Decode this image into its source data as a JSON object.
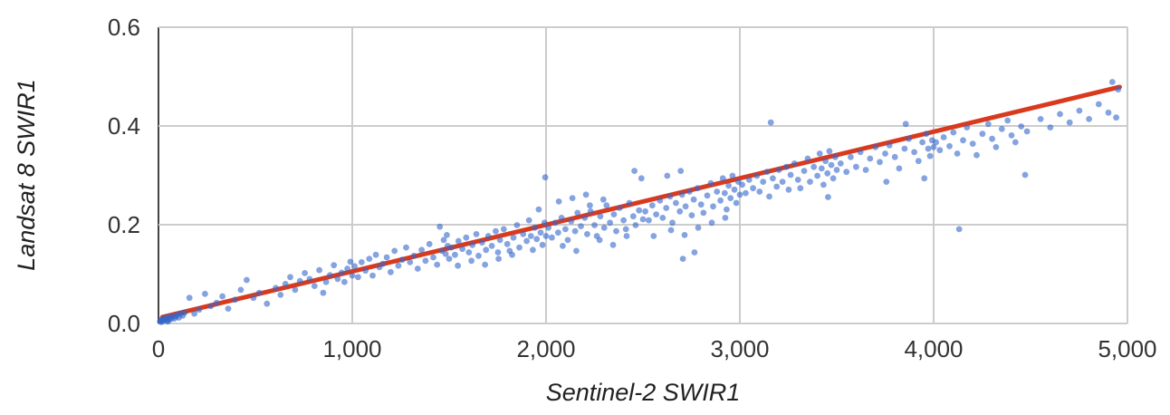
{
  "chart": {
    "x_axis_title": "Sentinel-2 SWIR1",
    "y_axis_title": "Landsat 8 SWIR1"
  },
  "chart_data": {
    "type": "scatter",
    "title": "",
    "xlabel": "Sentinel-2 SWIR1",
    "ylabel": "Landsat 8 SWIR1",
    "xlim": [
      0,
      5000
    ],
    "ylim": [
      0,
      0.6
    ],
    "grid": true,
    "legend": "none",
    "point_color": "#3366cc",
    "point_opacity": 0.6,
    "gridline_color": "#cccccc",
    "axis_line_color": "#444444",
    "tick_label_color": "#333333",
    "x_ticks": [
      {
        "value": 0,
        "label": "0"
      },
      {
        "value": 1000,
        "label": "1,000"
      },
      {
        "value": 2000,
        "label": "2,000"
      },
      {
        "value": 3000,
        "label": "3,000"
      },
      {
        "value": 4000,
        "label": "4,000"
      },
      {
        "value": 5000,
        "label": "5,000"
      }
    ],
    "y_ticks": [
      {
        "value": 0,
        "label": "0.0"
      },
      {
        "value": 0.2,
        "label": "0.2"
      },
      {
        "value": 0.4,
        "label": "0.4"
      },
      {
        "value": 0.6,
        "label": "0.6"
      }
    ],
    "trendline": {
      "x1": 20,
      "y1": 0.013,
      "x2": 4960,
      "y2": 0.479,
      "color": "#d93a1e",
      "width": 5
    },
    "points": [
      [
        8,
        0.004
      ],
      [
        12,
        0.006
      ],
      [
        15,
        0.003
      ],
      [
        18,
        0.008
      ],
      [
        22,
        0.005
      ],
      [
        28,
        0.01
      ],
      [
        33,
        0.007
      ],
      [
        38,
        0.012
      ],
      [
        44,
        0.006
      ],
      [
        48,
        0.004
      ],
      [
        50,
        0.009
      ],
      [
        55,
        0.013
      ],
      [
        60,
        0.008
      ],
      [
        68,
        0.011
      ],
      [
        75,
        0.015
      ],
      [
        82,
        0.01
      ],
      [
        90,
        0.014
      ],
      [
        98,
        0.018
      ],
      [
        105,
        0.012
      ],
      [
        115,
        0.02
      ],
      [
        125,
        0.016
      ],
      [
        135,
        0.022
      ],
      [
        160,
        0.052
      ],
      [
        185,
        0.02
      ],
      [
        210,
        0.028
      ],
      [
        240,
        0.06
      ],
      [
        270,
        0.035
      ],
      [
        300,
        0.042
      ],
      [
        330,
        0.055
      ],
      [
        360,
        0.03
      ],
      [
        395,
        0.048
      ],
      [
        425,
        0.068
      ],
      [
        455,
        0.088
      ],
      [
        490,
        0.052
      ],
      [
        520,
        0.062
      ],
      [
        560,
        0.04
      ],
      [
        605,
        0.072
      ],
      [
        630,
        0.058
      ],
      [
        655,
        0.08
      ],
      [
        680,
        0.094
      ],
      [
        705,
        0.068
      ],
      [
        730,
        0.086
      ],
      [
        755,
        0.102
      ],
      [
        780,
        0.09
      ],
      [
        805,
        0.076
      ],
      [
        830,
        0.108
      ],
      [
        850,
        0.062
      ],
      [
        865,
        0.084
      ],
      [
        885,
        0.098
      ],
      [
        905,
        0.118
      ],
      [
        925,
        0.09
      ],
      [
        945,
        0.103
      ],
      [
        960,
        0.084
      ],
      [
        975,
        0.111
      ],
      [
        990,
        0.125
      ],
      [
        1000,
        0.097
      ],
      [
        1012,
        0.116
      ],
      [
        1030,
        0.094
      ],
      [
        1048,
        0.124
      ],
      [
        1068,
        0.107
      ],
      [
        1088,
        0.131
      ],
      [
        1105,
        0.097
      ],
      [
        1122,
        0.139
      ],
      [
        1140,
        0.114
      ],
      [
        1158,
        0.121
      ],
      [
        1178,
        0.134
      ],
      [
        1198,
        0.104
      ],
      [
        1218,
        0.147
      ],
      [
        1238,
        0.117
      ],
      [
        1258,
        0.129
      ],
      [
        1278,
        0.154
      ],
      [
        1298,
        0.124
      ],
      [
        1318,
        0.137
      ],
      [
        1338,
        0.111
      ],
      [
        1358,
        0.149
      ],
      [
        1378,
        0.127
      ],
      [
        1398,
        0.161
      ],
      [
        1418,
        0.134
      ],
      [
        1438,
        0.119
      ],
      [
        1452,
        0.196
      ],
      [
        1462,
        0.147
      ],
      [
        1472,
        0.169
      ],
      [
        1482,
        0.141
      ],
      [
        1488,
        0.179
      ],
      [
        1492,
        0.157
      ],
      [
        1500,
        0.131
      ],
      [
        1512,
        0.154
      ],
      [
        1530,
        0.139
      ],
      [
        1545,
        0.117
      ],
      [
        1548,
        0.167
      ],
      [
        1568,
        0.151
      ],
      [
        1588,
        0.174
      ],
      [
        1602,
        0.144
      ],
      [
        1615,
        0.127
      ],
      [
        1620,
        0.159
      ],
      [
        1640,
        0.181
      ],
      [
        1652,
        0.137
      ],
      [
        1670,
        0.164
      ],
      [
        1685,
        0.119
      ],
      [
        1690,
        0.149
      ],
      [
        1702,
        0.177
      ],
      [
        1720,
        0.157
      ],
      [
        1740,
        0.187
      ],
      [
        1752,
        0.144
      ],
      [
        1755,
        0.131
      ],
      [
        1762,
        0.169
      ],
      [
        1782,
        0.191
      ],
      [
        1800,
        0.161
      ],
      [
        1812,
        0.147
      ],
      [
        1825,
        0.139
      ],
      [
        1832,
        0.174
      ],
      [
        1850,
        0.199
      ],
      [
        1862,
        0.154
      ],
      [
        1882,
        0.181
      ],
      [
        1900,
        0.167
      ],
      [
        1912,
        0.209
      ],
      [
        1922,
        0.177
      ],
      [
        1932,
        0.149
      ],
      [
        1942,
        0.194
      ],
      [
        1952,
        0.171
      ],
      [
        1962,
        0.231
      ],
      [
        1972,
        0.184
      ],
      [
        1982,
        0.159
      ],
      [
        1992,
        0.204
      ],
      [
        1996,
        0.296
      ],
      [
        2000,
        0.177
      ],
      [
        2012,
        0.194
      ],
      [
        2030,
        0.174
      ],
      [
        2048,
        0.204
      ],
      [
        2062,
        0.184
      ],
      [
        2066,
        0.247
      ],
      [
        2080,
        0.214
      ],
      [
        2086,
        0.157
      ],
      [
        2100,
        0.191
      ],
      [
        2112,
        0.169
      ],
      [
        2130,
        0.207
      ],
      [
        2136,
        0.254
      ],
      [
        2150,
        0.187
      ],
      [
        2156,
        0.147
      ],
      [
        2162,
        0.224
      ],
      [
        2180,
        0.197
      ],
      [
        2200,
        0.214
      ],
      [
        2206,
        0.261
      ],
      [
        2212,
        0.181
      ],
      [
        2226,
        0.239
      ],
      [
        2230,
        0.227
      ],
      [
        2250,
        0.199
      ],
      [
        2262,
        0.177
      ],
      [
        2276,
        0.169
      ],
      [
        2280,
        0.217
      ],
      [
        2296,
        0.251
      ],
      [
        2300,
        0.194
      ],
      [
        2312,
        0.239
      ],
      [
        2330,
        0.204
      ],
      [
        2346,
        0.159
      ],
      [
        2350,
        0.221
      ],
      [
        2362,
        0.187
      ],
      [
        2380,
        0.234
      ],
      [
        2400,
        0.209
      ],
      [
        2412,
        0.191
      ],
      [
        2416,
        0.177
      ],
      [
        2430,
        0.244
      ],
      [
        2450,
        0.217
      ],
      [
        2456,
        0.309
      ],
      [
        2462,
        0.199
      ],
      [
        2480,
        0.229
      ],
      [
        2492,
        0.294
      ],
      [
        2500,
        0.211
      ],
      [
        2512,
        0.227
      ],
      [
        2530,
        0.209
      ],
      [
        2548,
        0.239
      ],
      [
        2555,
        0.177
      ],
      [
        2568,
        0.221
      ],
      [
        2588,
        0.249
      ],
      [
        2602,
        0.214
      ],
      [
        2620,
        0.234
      ],
      [
        2625,
        0.299
      ],
      [
        2640,
        0.257
      ],
      [
        2645,
        0.189
      ],
      [
        2652,
        0.204
      ],
      [
        2670,
        0.244
      ],
      [
        2690,
        0.227
      ],
      [
        2695,
        0.309
      ],
      [
        2702,
        0.261
      ],
      [
        2706,
        0.131
      ],
      [
        2715,
        0.179
      ],
      [
        2720,
        0.237
      ],
      [
        2740,
        0.267
      ],
      [
        2752,
        0.219
      ],
      [
        2762,
        0.251
      ],
      [
        2766,
        0.144
      ],
      [
        2782,
        0.274
      ],
      [
        2785,
        0.194
      ],
      [
        2800,
        0.241
      ],
      [
        2812,
        0.224
      ],
      [
        2832,
        0.259
      ],
      [
        2850,
        0.284
      ],
      [
        2855,
        0.204
      ],
      [
        2862,
        0.237
      ],
      [
        2882,
        0.267
      ],
      [
        2900,
        0.249
      ],
      [
        2912,
        0.294
      ],
      [
        2922,
        0.264
      ],
      [
        2925,
        0.214
      ],
      [
        2932,
        0.231
      ],
      [
        2942,
        0.279
      ],
      [
        2952,
        0.254
      ],
      [
        2962,
        0.299
      ],
      [
        2972,
        0.271
      ],
      [
        2982,
        0.244
      ],
      [
        2992,
        0.287
      ],
      [
        3000,
        0.261
      ],
      [
        3012,
        0.281
      ],
      [
        3030,
        0.264
      ],
      [
        3048,
        0.291
      ],
      [
        3068,
        0.274
      ],
      [
        3088,
        0.299
      ],
      [
        3102,
        0.267
      ],
      [
        3120,
        0.287
      ],
      [
        3140,
        0.307
      ],
      [
        3152,
        0.257
      ],
      [
        3160,
        0.407
      ],
      [
        3170,
        0.294
      ],
      [
        3190,
        0.277
      ],
      [
        3202,
        0.311
      ],
      [
        3220,
        0.287
      ],
      [
        3240,
        0.317
      ],
      [
        3252,
        0.271
      ],
      [
        3262,
        0.301
      ],
      [
        3282,
        0.324
      ],
      [
        3300,
        0.291
      ],
      [
        3312,
        0.274
      ],
      [
        3332,
        0.309
      ],
      [
        3350,
        0.334
      ],
      [
        3362,
        0.287
      ],
      [
        3382,
        0.317
      ],
      [
        3400,
        0.299
      ],
      [
        3412,
        0.344
      ],
      [
        3422,
        0.314
      ],
      [
        3432,
        0.281
      ],
      [
        3442,
        0.329
      ],
      [
        3452,
        0.304
      ],
      [
        3455,
        0.256
      ],
      [
        3462,
        0.349
      ],
      [
        3472,
        0.321
      ],
      [
        3482,
        0.294
      ],
      [
        3492,
        0.337
      ],
      [
        3500,
        0.311
      ],
      [
        3520,
        0.324
      ],
      [
        3550,
        0.307
      ],
      [
        3572,
        0.337
      ],
      [
        3600,
        0.317
      ],
      [
        3622,
        0.347
      ],
      [
        3650,
        0.311
      ],
      [
        3672,
        0.334
      ],
      [
        3700,
        0.357
      ],
      [
        3722,
        0.327
      ],
      [
        3750,
        0.344
      ],
      [
        3756,
        0.287
      ],
      [
        3772,
        0.361
      ],
      [
        3800,
        0.337
      ],
      [
        3822,
        0.314
      ],
      [
        3850,
        0.354
      ],
      [
        3856,
        0.404
      ],
      [
        3872,
        0.374
      ],
      [
        3900,
        0.347
      ],
      [
        3922,
        0.329
      ],
      [
        3942,
        0.367
      ],
      [
        3952,
        0.294
      ],
      [
        3962,
        0.384
      ],
      [
        3972,
        0.354
      ],
      [
        3982,
        0.339
      ],
      [
        3992,
        0.371
      ],
      [
        4000,
        0.357
      ],
      [
        4012,
        0.367
      ],
      [
        4032,
        0.351
      ],
      [
        4052,
        0.377
      ],
      [
        4082,
        0.359
      ],
      [
        4102,
        0.387
      ],
      [
        4122,
        0.344
      ],
      [
        4132,
        0.191
      ],
      [
        4152,
        0.371
      ],
      [
        4172,
        0.397
      ],
      [
        4202,
        0.364
      ],
      [
        4222,
        0.341
      ],
      [
        4252,
        0.384
      ],
      [
        4282,
        0.404
      ],
      [
        4302,
        0.374
      ],
      [
        4322,
        0.357
      ],
      [
        4352,
        0.394
      ],
      [
        4382,
        0.411
      ],
      [
        4402,
        0.381
      ],
      [
        4422,
        0.367
      ],
      [
        4452,
        0.399
      ],
      [
        4472,
        0.301
      ],
      [
        4482,
        0.389
      ],
      [
        4552,
        0.414
      ],
      [
        4602,
        0.397
      ],
      [
        4652,
        0.424
      ],
      [
        4702,
        0.407
      ],
      [
        4752,
        0.431
      ],
      [
        4802,
        0.414
      ],
      [
        4852,
        0.444
      ],
      [
        4902,
        0.427
      ],
      [
        4922,
        0.489
      ],
      [
        4942,
        0.417
      ],
      [
        4952,
        0.474
      ]
    ]
  }
}
